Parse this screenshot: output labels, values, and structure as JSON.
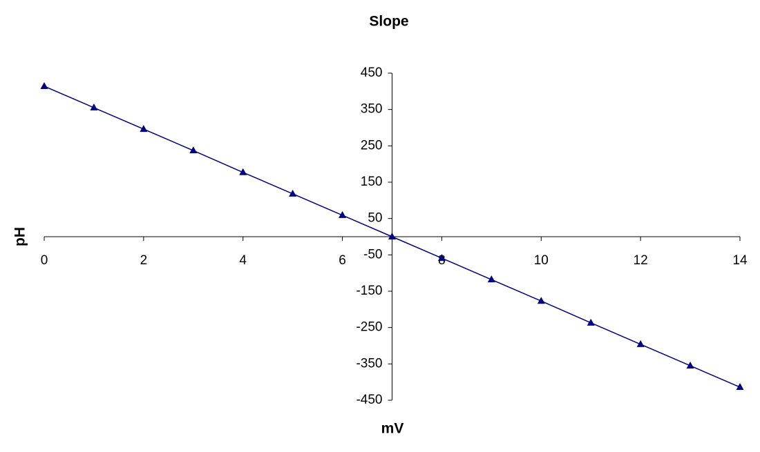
{
  "chart_data": {
    "type": "scatter",
    "title": "Slope",
    "x_label": "mV",
    "y_label": "pH",
    "x": [
      0,
      1,
      2,
      3,
      4,
      5,
      6,
      7,
      8,
      9,
      10,
      11,
      12,
      13,
      14
    ],
    "series": [
      {
        "name": "Slope",
        "color": "#000080",
        "values": [
          414,
          355,
          296,
          237,
          177,
          118,
          59,
          0,
          -59,
          -118,
          -177,
          -237,
          -296,
          -355,
          -414
        ]
      }
    ],
    "xlim": [
      0,
      14
    ],
    "xticks": [
      0,
      2,
      4,
      6,
      8,
      10,
      12,
      14
    ],
    "ylim": [
      -450,
      450
    ],
    "yticks": [
      -450,
      -350,
      -250,
      -150,
      -50,
      50,
      150,
      250,
      350,
      450
    ],
    "y_axis_crosses_x": 7,
    "x_axis_crosses_y": 0,
    "marker": "triangle",
    "grid": false
  }
}
